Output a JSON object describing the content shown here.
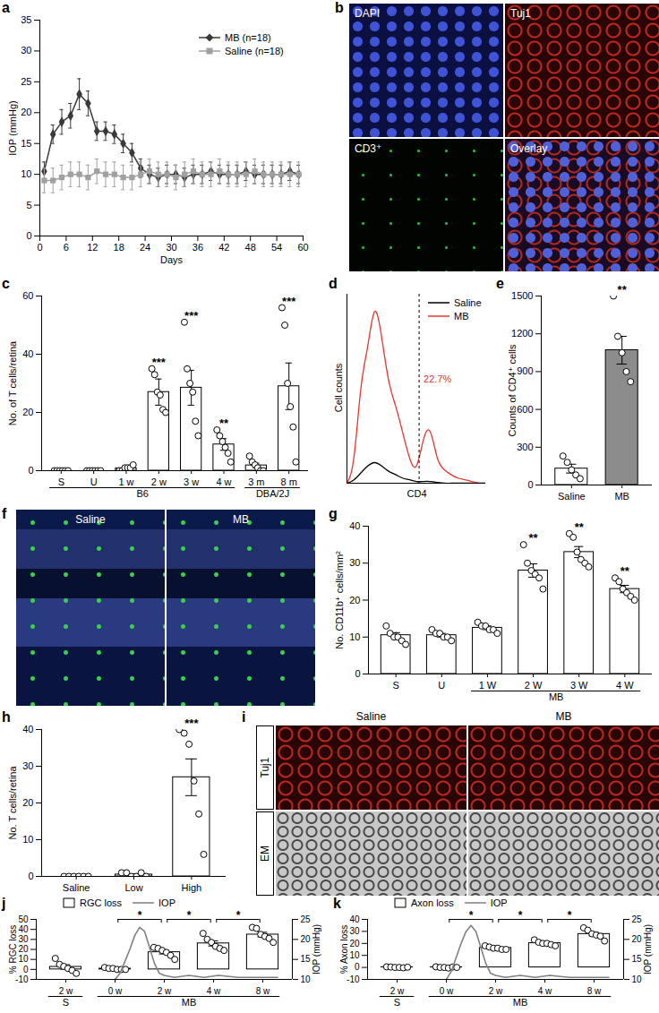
{
  "chart_data": [
    {
      "panel": "a",
      "type": "line",
      "x_label": "Days",
      "y_label": "IOP (mmHg)",
      "xlim": [
        0,
        60
      ],
      "ylim": [
        0,
        35
      ],
      "xticks": [
        0,
        6,
        12,
        18,
        24,
        30,
        36,
        42,
        48,
        54,
        60
      ],
      "yticks": [
        0,
        5,
        10,
        15,
        20,
        25,
        30,
        35
      ],
      "legend": "top-right",
      "x": [
        1,
        3,
        5,
        7,
        9,
        11,
        13,
        15,
        17,
        19,
        21,
        23,
        25,
        27,
        29,
        31,
        33,
        35,
        37,
        39,
        41,
        43,
        45,
        47,
        49,
        51,
        53,
        55,
        57,
        59
      ],
      "series": [
        {
          "name": "MB (n=18)",
          "color": "#3a3a3a",
          "marker": "diamond",
          "line_style": "solid",
          "values": [
            10.5,
            16.5,
            18.5,
            19.5,
            23,
            21.5,
            17,
            17,
            16.5,
            15,
            13.5,
            11,
            10,
            9.5,
            10,
            10,
            9.5,
            10,
            10,
            10.5,
            10,
            10,
            10,
            10.5,
            10,
            10,
            10,
            10,
            10.5,
            10
          ],
          "errors": [
            1.5,
            1.5,
            2,
            2,
            2.5,
            2,
            1.5,
            1.5,
            1.5,
            1.5,
            1.5,
            1.5,
            1.5,
            1.5,
            1.5,
            1.5,
            1.5,
            1.5,
            1.5,
            1.5,
            1.5,
            1.5,
            1.5,
            1.5,
            1.5,
            1.5,
            1.5,
            1.5,
            1.5,
            1.5
          ]
        },
        {
          "name": "Saline (n=18)",
          "color": "#a0a0a0",
          "marker": "square",
          "line_style": "solid",
          "values": [
            9,
            9,
            9.5,
            10,
            10,
            9.5,
            10.5,
            10,
            10,
            9.5,
            9.5,
            10,
            10.5,
            10,
            10,
            9.5,
            10,
            10.5,
            10,
            10,
            10.5,
            10,
            10,
            10,
            10.5,
            10,
            10,
            10,
            10,
            10
          ],
          "errors": [
            2,
            2,
            2,
            2,
            2,
            2,
            2,
            2,
            2,
            2,
            2,
            2,
            2,
            2,
            2,
            2,
            2,
            2,
            2,
            2,
            2,
            2,
            2,
            2,
            2,
            2,
            2,
            2,
            2,
            2
          ]
        }
      ]
    },
    {
      "panel": "b",
      "type": "image",
      "labels": [
        "DAPI",
        "Tuj1",
        "CD3⁺",
        "Overlay"
      ]
    },
    {
      "panel": "c",
      "type": "bar",
      "y_label": "No. of T cells/retina",
      "categories": [
        "S",
        "U",
        "1 w",
        "2 w",
        "3 w",
        "4 w",
        "3 m",
        "8 m"
      ],
      "values": [
        0,
        0,
        0.8,
        27,
        28.5,
        9,
        1.8,
        29
      ],
      "errors": [
        0,
        0,
        0.3,
        4.5,
        6,
        2,
        0.8,
        8
      ],
      "points": [
        [
          0,
          0,
          0,
          0,
          0,
          0
        ],
        [
          0,
          0,
          0,
          0,
          0,
          0
        ],
        [
          0,
          0,
          1,
          1,
          1,
          2
        ],
        [
          35,
          33,
          27,
          26,
          21,
          20
        ],
        [
          51,
          35,
          30,
          27,
          17,
          12
        ],
        [
          14,
          12,
          10,
          8,
          6,
          3
        ],
        [
          5,
          3,
          2,
          1,
          0,
          0
        ],
        [
          56,
          50,
          30,
          22,
          15,
          3
        ]
      ],
      "color": "white",
      "ylim": [
        0,
        60
      ],
      "yticks": [
        0,
        20,
        40,
        60
      ],
      "groups": [
        {
          "label": "B6",
          "from": 0,
          "to": 5
        },
        {
          "label": "DBA/2J",
          "from": 6,
          "to": 7
        }
      ],
      "annotations": [
        {
          "index": 3,
          "text": "***"
        },
        {
          "index": 4,
          "text": "***"
        },
        {
          "index": 5,
          "text": "**"
        },
        {
          "index": 7,
          "text": "***"
        }
      ]
    },
    {
      "panel": "d",
      "type": "line",
      "x_label": "CD4",
      "y_label": "Cell counts",
      "xlim": [
        0,
        100
      ],
      "ylim": [
        0,
        110
      ],
      "xticks": [],
      "yticks": [],
      "tick_labels": false,
      "legend": "top-right",
      "gate": 52,
      "x": [
        0,
        5,
        10,
        15,
        20,
        25,
        30,
        35,
        40,
        45,
        50,
        55,
        60,
        65,
        70,
        75,
        80,
        85,
        90,
        95,
        100
      ],
      "series": [
        {
          "name": "Saline",
          "color": "#000000",
          "line_style": "solid",
          "values": [
            0,
            2,
            6,
            10,
            12,
            10,
            7,
            5,
            3,
            2,
            1,
            1,
            1,
            0.5,
            0,
            0,
            0,
            0,
            0,
            0,
            0
          ]
        },
        {
          "name": "MB",
          "color": "#e8352e",
          "line_style": "solid",
          "values": [
            0,
            15,
            55,
            80,
            100,
            85,
            60,
            45,
            30,
            15,
            10,
            25,
            30,
            15,
            8,
            5,
            3,
            2,
            1,
            0,
            0
          ]
        }
      ],
      "annotations": [
        {
          "text": "22.7%"
        }
      ]
    },
    {
      "panel": "e",
      "type": "bar",
      "y_label": "Counts of CD4⁺ cells",
      "categories": [
        "Saline",
        "MB"
      ],
      "values": [
        130,
        1070
      ],
      "errors": [
        35,
        110
      ],
      "points": [
        [
          230,
          180,
          120,
          80,
          50
        ],
        [
          1500,
          1180,
          1050,
          900,
          820
        ]
      ],
      "colors": [
        "white",
        "#8c8c8c"
      ],
      "ylim": [
        0,
        1500
      ],
      "yticks": [
        0,
        300,
        600,
        900,
        1200,
        1500
      ],
      "annotations": [
        {
          "index": 1,
          "text": "**"
        }
      ]
    },
    {
      "panel": "f",
      "type": "image",
      "labels": [
        "Saline",
        "MB"
      ]
    },
    {
      "panel": "g",
      "type": "bar",
      "y_label": "No. CD11b⁺ cells/mm²",
      "categories": [
        "S",
        "U",
        "1 W",
        "2 W",
        "3 W",
        "4 W"
      ],
      "values": [
        10.5,
        10.5,
        12.5,
        28,
        33,
        23
      ],
      "errors": [
        0.7,
        0.5,
        0.5,
        1.8,
        1.5,
        1
      ],
      "points": [
        [
          13,
          11,
          10,
          10,
          9,
          8
        ],
        [
          12,
          11,
          11,
          10,
          10,
          9
        ],
        [
          14,
          13,
          13,
          12,
          12,
          11
        ],
        [
          35,
          30,
          28,
          27,
          26,
          23
        ],
        [
          38,
          37,
          33,
          31,
          30,
          29
        ],
        [
          26,
          25,
          23,
          22,
          21,
          20
        ]
      ],
      "color": "white",
      "ylim": [
        0,
        40
      ],
      "yticks": [
        0,
        10,
        20,
        30,
        40
      ],
      "groups": [
        {
          "label": "MB",
          "from": 2,
          "to": 5
        }
      ],
      "annotations": [
        {
          "index": 3,
          "text": "**"
        },
        {
          "index": 4,
          "text": "**"
        },
        {
          "index": 5,
          "text": "**"
        }
      ]
    },
    {
      "panel": "h",
      "type": "bar",
      "y_label": "No. T cells/retina",
      "categories": [
        "Saline",
        "Low",
        "High"
      ],
      "values": [
        0,
        0.5,
        27
      ],
      "errors": [
        0,
        0.2,
        5
      ],
      "points": [
        [
          0,
          0,
          0,
          0,
          0,
          0
        ],
        [
          1,
          1,
          0,
          0,
          1,
          0
        ],
        [
          40,
          39,
          36,
          26,
          17,
          6
        ]
      ],
      "color": "white",
      "ylim": [
        0,
        40
      ],
      "yticks": [
        0,
        10,
        20,
        30,
        40
      ],
      "annotations": [
        {
          "index": 2,
          "text": "***"
        }
      ]
    },
    {
      "panel": "i",
      "type": "image",
      "columns": [
        "Saline",
        "MB"
      ],
      "rows": [
        "Tuj1",
        "EM"
      ]
    },
    {
      "panel": "j",
      "type": "bar",
      "y_label": "% RGC loss",
      "y2_label": "IOP (mmHg)",
      "categories": [
        "2 w",
        "0 w",
        "2 w",
        "4 w",
        "8 w"
      ],
      "ylim": [
        -10,
        50
      ],
      "yticks": [
        -10,
        0,
        10,
        20,
        30,
        40,
        50
      ],
      "y2lim": [
        10,
        25
      ],
      "y2ticks": [
        10,
        15,
        20,
        25
      ],
      "legend": "top",
      "groups": [
        {
          "label": "S",
          "from": 0,
          "to": 0
        },
        {
          "label": "MB",
          "from": 1,
          "to": 4
        }
      ],
      "comparisons": [
        {
          "from": 1,
          "to": 2,
          "text": "*"
        },
        {
          "from": 2,
          "to": 3,
          "text": "*"
        },
        {
          "from": 3,
          "to": 4,
          "text": "*"
        }
      ],
      "series": [
        {
          "name": "RGC loss",
          "type": "bar",
          "color": "white",
          "values": [
            2.5,
            0.7,
            17.2,
            26,
            34.8
          ],
          "errors": [
            2.2,
            0.5,
            1.8,
            2.6,
            2.3
          ],
          "points": [
            [
              11,
              5,
              3,
              1,
              -1,
              -4
            ],
            [
              2,
              1,
              1,
              0,
              0,
              0
            ],
            [
              22,
              21,
              19,
              17,
              14,
              10
            ],
            [
              36,
              30,
              27,
              23,
              21,
              19
            ],
            [
              42,
              41,
              35,
              33,
              31,
              27
            ]
          ]
        },
        {
          "name": "IOP",
          "type": "line",
          "axis": "y2",
          "color": "#808080",
          "x": [
            1,
            1.1,
            1.2,
            1.3,
            1.4,
            1.5,
            1.6,
            1.7,
            1.8,
            1.9,
            2.0,
            2.2,
            2.5,
            2.8,
            3.1,
            3.5,
            4.0,
            4.3
          ],
          "values": [
            10,
            11.5,
            14.5,
            17.5,
            21,
            23,
            22,
            18,
            14,
            11.5,
            11,
            10.5,
            11,
            10.5,
            11,
            10.5,
            10.5,
            10.5
          ]
        }
      ]
    },
    {
      "panel": "k",
      "type": "bar",
      "y_label": "% Axon loss",
      "y2_label": "IOP (mmHg)",
      "categories": [
        "2 w",
        "0 w",
        "2 w",
        "4 w",
        "8 w"
      ],
      "ylim": [
        -10,
        40
      ],
      "yticks": [
        -10,
        0,
        10,
        20,
        30,
        40
      ],
      "y2lim": [
        10,
        25
      ],
      "y2ticks": [
        10,
        15,
        20,
        25
      ],
      "legend": "top",
      "groups": [
        {
          "label": "S",
          "from": 0,
          "to": 0
        },
        {
          "label": "MB",
          "from": 1,
          "to": 4
        }
      ],
      "comparisons": [
        {
          "from": 1,
          "to": 2,
          "text": "*"
        },
        {
          "from": 2,
          "to": 3,
          "text": "*"
        },
        {
          "from": 3,
          "to": 4,
          "text": "*"
        }
      ],
      "series": [
        {
          "name": "Axon loss",
          "type": "bar",
          "color": "white",
          "values": [
            0.1,
            0.05,
            16.2,
            20.2,
            27.8
          ],
          "errors": [
            0.2,
            0.2,
            0.5,
            0.7,
            1.5
          ],
          "points": [
            [
              0.5,
              0.3,
              0,
              0,
              -0.3,
              0.2
            ],
            [
              0.5,
              0,
              0,
              -0.5,
              0.3,
              0
            ],
            [
              18,
              17,
              16,
              16,
              15,
              15
            ],
            [
              23,
              21,
              20,
              20,
              19,
              18
            ],
            [
              33,
              31,
              28,
              27,
              26,
              22
            ]
          ]
        },
        {
          "name": "IOP",
          "type": "line",
          "axis": "y2",
          "color": "#808080",
          "x": [
            1,
            1.1,
            1.2,
            1.3,
            1.4,
            1.5,
            1.6,
            1.7,
            1.8,
            1.9,
            2.0,
            2.2,
            2.5,
            2.8,
            3.1,
            3.5,
            4.0,
            4.3
          ],
          "values": [
            10,
            12,
            15.5,
            19,
            22,
            23.5,
            22,
            18,
            14,
            11.5,
            11,
            10.5,
            11,
            10.5,
            11,
            10.5,
            10.5,
            10.5
          ]
        }
      ]
    }
  ]
}
